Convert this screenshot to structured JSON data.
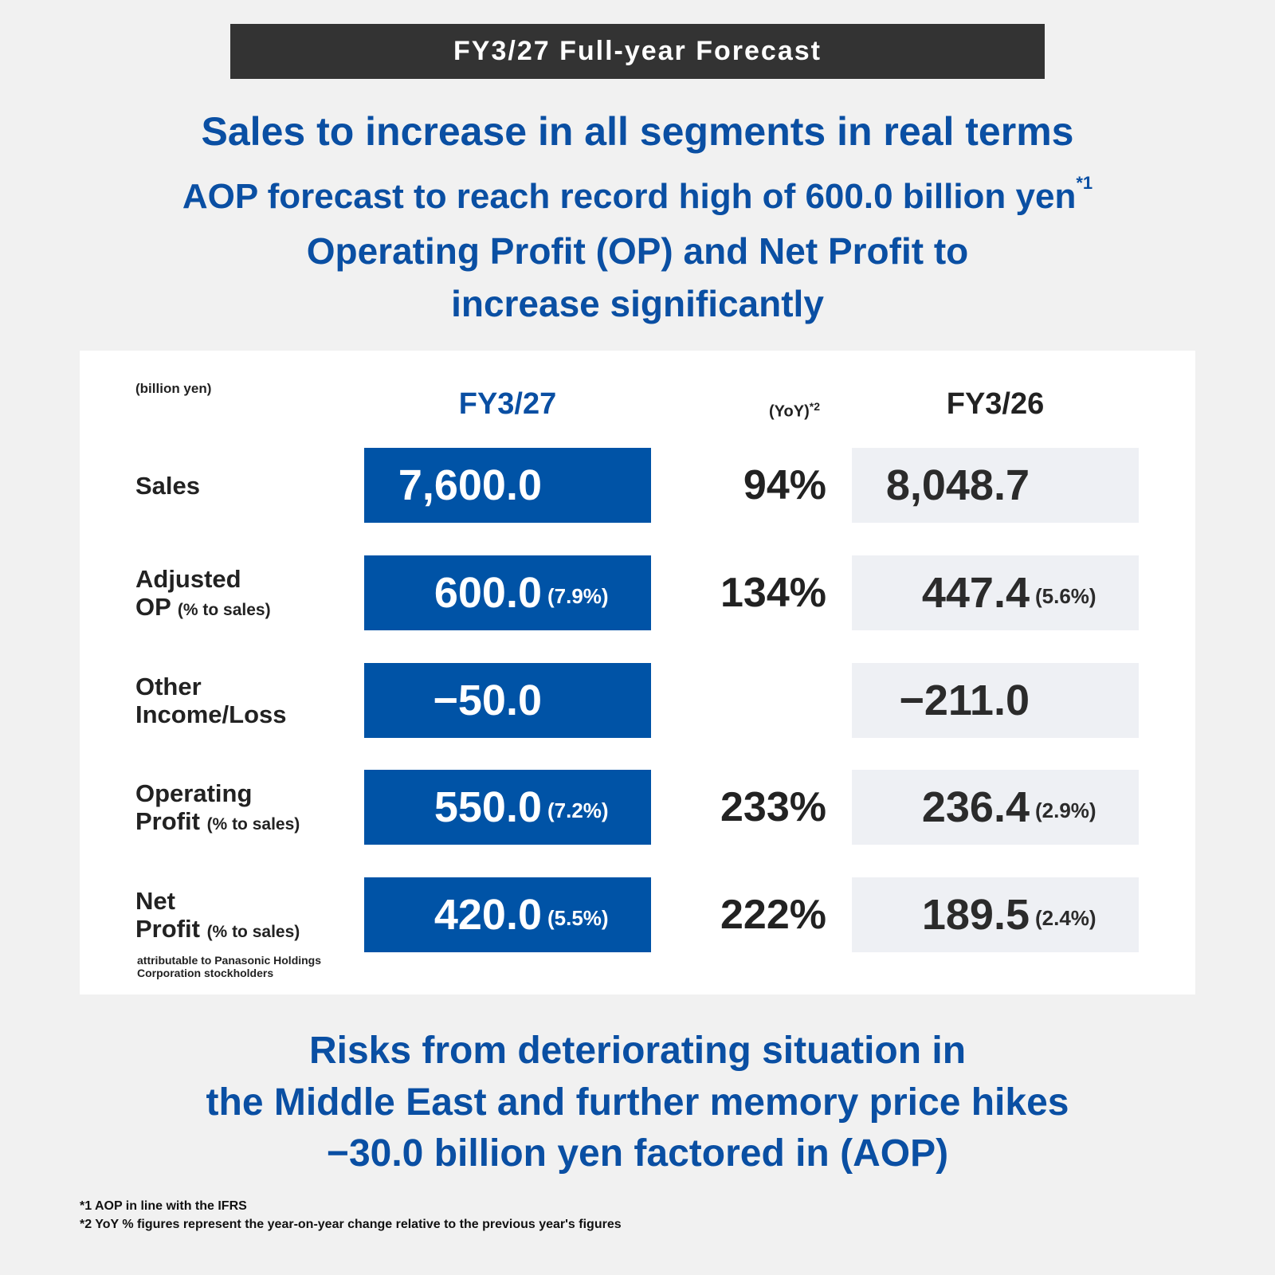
{
  "banner": "FY3/27 Full-year Forecast",
  "headline": {
    "lines": [
      "Sales to increase in all segments in real terms",
      "AOP forecast to reach record high of 600.0 billion yen",
      "Operating Profit (OP) and Net Profit to",
      "increase significantly"
    ],
    "note_mark": "*1"
  },
  "table": {
    "unit": "(billion yen)",
    "columns": {
      "current": "FY3/27",
      "yoy": "(YoY)",
      "yoy_note_mark": "*2",
      "prior": "FY3/26"
    },
    "rows": [
      {
        "label": [
          "Sales"
        ],
        "current": "7,600.0",
        "yoy": "94%",
        "prior": "8,048.7"
      },
      {
        "label": [
          "Adjusted",
          "OP"
        ],
        "label_sub": "(% to sales)",
        "current": "600.0",
        "current_pct": "(7.9%)",
        "yoy": "134%",
        "prior": "447.4",
        "prior_pct": "(5.6%)"
      },
      {
        "label": [
          "Other",
          "Income/Loss"
        ],
        "current": "−50.0",
        "prior": "−211.0"
      },
      {
        "label": [
          "Operating",
          "Profit"
        ],
        "label_sub": "(% to sales)",
        "current": "550.0",
        "current_pct": "(7.2%)",
        "yoy": "233%",
        "prior": "236.4",
        "prior_pct": "(2.9%)"
      },
      {
        "label": [
          "Net",
          "Profit"
        ],
        "label_sub": "(% to sales)",
        "label_note": "attributable to Panasonic Holdings Corporation stockholders",
        "current": "420.0",
        "current_pct": "(5.5%)",
        "yoy": "222%",
        "prior": "189.5",
        "prior_pct": "(2.4%)"
      }
    ]
  },
  "footer": {
    "lines": [
      "Risks from deteriorating situation in",
      "the Middle East and further memory price hikes",
      "−30.0 billion yen factored in (AOP)"
    ]
  },
  "footnotes": [
    "*1 AOP in line with the IFRS",
    "*2 YoY % figures represent the year-on-year change relative to the previous year's figures"
  ]
}
